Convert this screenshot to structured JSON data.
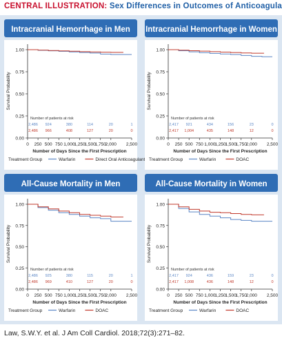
{
  "banner": {
    "lead": "CENTRAL ILLUSTRATION:",
    "title": "Sex Differences in Outcomes of Anticoagulants"
  },
  "citation": "Law, S.W.Y. et al. J Am Coll Cardiol. 2018;72(3):271–82.",
  "colors": {
    "warfarin": "#5b86c5",
    "doac": "#c0392b",
    "header": "#2f6db5",
    "header_text": "#ffffff",
    "background": "#dbe6f2"
  },
  "chart_data": [
    {
      "type": "line",
      "title": "Intracranial Hemorrhage in Men",
      "xlabel": "Number of Days Since the First Prescription",
      "ylabel": "Survival Probability",
      "xlim": [
        0,
        2500
      ],
      "ylim": [
        0,
        1
      ],
      "xticks": [
        "0",
        "250",
        "500",
        "750",
        "1,000",
        "1,250",
        "1,500",
        "1,750",
        "2,000",
        "2,500"
      ],
      "yticks": [
        "0.00",
        "0.25",
        "0.50",
        "0.75",
        "1.00"
      ],
      "xtick_values": [
        0,
        250,
        500,
        750,
        1000,
        1250,
        1500,
        1750,
        2000,
        2500
      ],
      "ytick_values": [
        0,
        0.25,
        0.5,
        0.75,
        1.0
      ],
      "series": [
        {
          "name": "Warfarin",
          "color": "#5b86c5",
          "x": [
            0,
            250,
            500,
            750,
            1000,
            1250,
            1500,
            1750,
            2000,
            2250,
            2500
          ],
          "y": [
            1.0,
            0.993,
            0.987,
            0.981,
            0.975,
            0.968,
            0.962,
            0.95,
            0.945,
            0.945,
            0.945
          ]
        },
        {
          "name": "Direct Oral Anticoagulant (DOAC)",
          "color": "#c0392b",
          "x": [
            0,
            250,
            500,
            750,
            1000,
            1250,
            1500,
            1750,
            2000,
            2300
          ],
          "y": [
            1.0,
            0.995,
            0.99,
            0.986,
            0.982,
            0.978,
            0.975,
            0.972,
            0.97,
            0.97
          ]
        }
      ],
      "risk_table": {
        "label": "Number of patients at risk",
        "rows": [
          {
            "series": "Warfarin",
            "color": "#5b86c5",
            "values": [
              "2,486",
              "924",
              "380",
              "114",
              "20",
              "1"
            ]
          },
          {
            "series": "DOAC",
            "color": "#c0392b",
            "values": [
              "2,486",
              "966",
              "408",
              "127",
              "20",
              "0"
            ]
          }
        ]
      },
      "legend": {
        "label": "Treatment Group",
        "entries": [
          "Warfarin",
          "Direct Oral Anticoagulant (DOAC)"
        ]
      }
    },
    {
      "type": "line",
      "title": "Intracranial Hemorrhage in Women",
      "xlabel": "Number of Days Since the First Prescription",
      "ylabel": "Survival Probability",
      "xlim": [
        0,
        2500
      ],
      "ylim": [
        0,
        1
      ],
      "xticks": [
        "0",
        "250",
        "500",
        "750",
        "1,000",
        "1,250",
        "1,500",
        "1,750",
        "2,000",
        "2,500"
      ],
      "yticks": [
        "0.00",
        "0.25",
        "0.50",
        "0.75",
        "1.00"
      ],
      "xtick_values": [
        0,
        250,
        500,
        750,
        1000,
        1250,
        1500,
        1750,
        2000,
        2500
      ],
      "ytick_values": [
        0,
        0.25,
        0.5,
        0.75,
        1.0
      ],
      "series": [
        {
          "name": "Warfarin",
          "color": "#5b86c5",
          "x": [
            0,
            250,
            500,
            750,
            1000,
            1250,
            1500,
            1750,
            2000,
            2250,
            2500
          ],
          "y": [
            1.0,
            0.988,
            0.976,
            0.966,
            0.958,
            0.951,
            0.945,
            0.935,
            0.925,
            0.92,
            0.92
          ]
        },
        {
          "name": "DOAC",
          "color": "#c0392b",
          "x": [
            0,
            250,
            500,
            750,
            1000,
            1250,
            1500,
            1750,
            2000,
            2300
          ],
          "y": [
            1.0,
            0.994,
            0.988,
            0.983,
            0.978,
            0.973,
            0.968,
            0.963,
            0.96,
            0.96
          ]
        }
      ],
      "risk_table": {
        "label": "Number of patients at risk",
        "rows": [
          {
            "series": "Warfarin",
            "color": "#5b86c5",
            "values": [
              "2,417",
              "921",
              "434",
              "156",
              "23",
              "0"
            ]
          },
          {
            "series": "DOAC",
            "color": "#c0392b",
            "values": [
              "2,417",
              "1,004",
              "435",
              "148",
              "12",
              "0"
            ]
          }
        ]
      },
      "legend": {
        "label": "Treatment Group",
        "entries": [
          "Warfarin",
          "DOAC"
        ]
      }
    },
    {
      "type": "line",
      "title": "All-Cause Mortality in Men",
      "xlabel": "Number of Days Since the First Prescription",
      "ylabel": "Survival Probability",
      "xlim": [
        0,
        2500
      ],
      "ylim": [
        0,
        1
      ],
      "xticks": [
        "0",
        "250",
        "500",
        "750",
        "1,000",
        "1,250",
        "1,500",
        "1,750",
        "2,000",
        "2,500"
      ],
      "yticks": [
        "0.00",
        "0.25",
        "0.50",
        "0.75",
        "1.00"
      ],
      "xtick_values": [
        0,
        250,
        500,
        750,
        1000,
        1250,
        1500,
        1750,
        2000,
        2500
      ],
      "ytick_values": [
        0,
        0.25,
        0.5,
        0.75,
        1.0
      ],
      "series": [
        {
          "name": "Warfarin",
          "color": "#5b86c5",
          "x": [
            0,
            250,
            500,
            750,
            1000,
            1250,
            1500,
            1750,
            2000,
            2250,
            2500
          ],
          "y": [
            1.0,
            0.96,
            0.93,
            0.9,
            0.88,
            0.86,
            0.84,
            0.83,
            0.8,
            0.8,
            0.8
          ]
        },
        {
          "name": "DOAC",
          "color": "#c0392b",
          "x": [
            0,
            250,
            500,
            750,
            1000,
            1250,
            1500,
            1750,
            2000,
            2300
          ],
          "y": [
            1.0,
            0.97,
            0.945,
            0.92,
            0.9,
            0.88,
            0.87,
            0.86,
            0.85,
            0.85
          ]
        }
      ],
      "risk_table": {
        "label": "Number of patients at risk",
        "rows": [
          {
            "series": "Warfarin",
            "color": "#5b86c5",
            "values": [
              "2,486",
              "925",
              "380",
              "115",
              "20",
              "1"
            ]
          },
          {
            "series": "DOAC",
            "color": "#c0392b",
            "values": [
              "2,486",
              "969",
              "410",
              "127",
              "20",
              "0"
            ]
          }
        ]
      },
      "legend": {
        "label": "Treatment Group",
        "entries": [
          "Warfarin",
          "DOAC"
        ]
      }
    },
    {
      "type": "line",
      "title": "All-Cause Mortality in Women",
      "xlabel": "Number of Days Since the First Prescription",
      "ylabel": "Survival Probability",
      "xlim": [
        0,
        2500
      ],
      "ylim": [
        0,
        1
      ],
      "xticks": [
        "0",
        "250",
        "500",
        "750",
        "1,000",
        "1,250",
        "1,500",
        "1,750",
        "2,000",
        "2,500"
      ],
      "yticks": [
        "0.00",
        "0.25",
        "0.50",
        "0.75",
        "1.00"
      ],
      "xtick_values": [
        0,
        250,
        500,
        750,
        1000,
        1250,
        1500,
        1750,
        2000,
        2500
      ],
      "ytick_values": [
        0,
        0.25,
        0.5,
        0.75,
        1.0
      ],
      "series": [
        {
          "name": "Warfarin",
          "color": "#5b86c5",
          "x": [
            0,
            250,
            500,
            750,
            1000,
            1250,
            1500,
            1750,
            2000,
            2250,
            2500
          ],
          "y": [
            1.0,
            0.95,
            0.91,
            0.88,
            0.86,
            0.84,
            0.82,
            0.81,
            0.8,
            0.8,
            0.8
          ]
        },
        {
          "name": "DOAC",
          "color": "#c0392b",
          "x": [
            0,
            250,
            500,
            750,
            1000,
            1250,
            1500,
            1750,
            2000,
            2300
          ],
          "y": [
            1.0,
            0.97,
            0.94,
            0.92,
            0.905,
            0.9,
            0.89,
            0.88,
            0.875,
            0.875
          ]
        }
      ],
      "risk_table": {
        "label": "Number of patients at risk",
        "rows": [
          {
            "series": "Warfarin",
            "color": "#5b86c5",
            "values": [
              "2,417",
              "924",
              "436",
              "159",
              "23",
              "0"
            ]
          },
          {
            "series": "DOAC",
            "color": "#c0392b",
            "values": [
              "2,417",
              "1,008",
              "436",
              "148",
              "12",
              "0"
            ]
          }
        ]
      },
      "legend": {
        "label": "Treatment Group",
        "entries": [
          "Warfarin",
          "DOAC"
        ]
      }
    }
  ]
}
